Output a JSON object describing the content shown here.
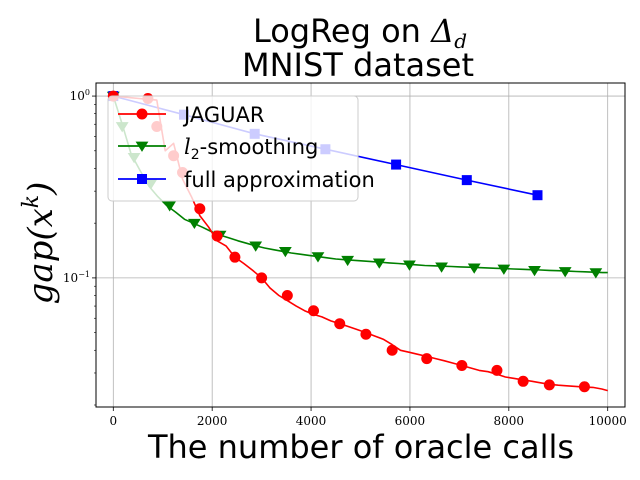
{
  "chart_data": {
    "type": "line",
    "title_line1_text": "LogReg on ",
    "title_line1_math": "Δ",
    "title_line1_sub": "d",
    "title_line2": "MNIST dataset",
    "xlabel": "The number of oracle calls",
    "ylabel": "gap(x",
    "ylabel_sup": "k",
    "ylabel_close": ")",
    "xlim": [
      -350,
      10350
    ],
    "ylim": [
      0.0195,
      1.18
    ],
    "yscale": "log",
    "grid": true,
    "legend_position": "upper-left",
    "x_ticks": [
      0,
      2000,
      4000,
      6000,
      8000,
      10000
    ],
    "x_tick_labels": [
      "0",
      "2000",
      "4000",
      "6000",
      "8000",
      "10000"
    ],
    "y_ticks": [
      0.1,
      1
    ],
    "y_tick_bases": [
      "10",
      "10"
    ],
    "y_tick_exps": [
      "−1",
      "0"
    ],
    "series": [
      {
        "name": "JAGUAR",
        "legend_text": "JAGUAR",
        "color": "#ff0000",
        "marker": "circle",
        "x": [
          0,
          180,
          350,
          520,
          700,
          880,
          1050,
          1220,
          1400,
          1580,
          1750,
          1930,
          2100,
          2280,
          2460,
          2640,
          2820,
          3000,
          3170,
          3350,
          3520,
          3700,
          3870,
          4050,
          4220,
          4400,
          4580,
          4760,
          4930,
          5110,
          5280,
          5460,
          5640,
          5810,
          5990,
          6160,
          6340,
          6520,
          6700,
          6870,
          7050,
          7220,
          7400,
          7580,
          7760,
          7930,
          8110,
          8290,
          8470,
          8640,
          8820,
          9000,
          9170,
          9350,
          9530,
          9700,
          9880,
          10000
        ],
        "y": [
          1.0,
          0.99,
          0.98,
          0.97,
          0.96,
          0.95,
          0.5,
          0.55,
          0.35,
          0.28,
          0.22,
          0.19,
          0.16,
          0.15,
          0.13,
          0.12,
          0.11,
          0.1,
          0.088,
          0.08,
          0.075,
          0.07,
          0.066,
          0.063,
          0.061,
          0.058,
          0.056,
          0.054,
          0.052,
          0.05,
          0.048,
          0.046,
          0.043,
          0.04,
          0.039,
          0.038,
          0.037,
          0.036,
          0.035,
          0.034,
          0.033,
          0.032,
          0.031,
          0.0305,
          0.0295,
          0.0285,
          0.028,
          0.0275,
          0.027,
          0.0265,
          0.026,
          0.0257,
          0.0255,
          0.0253,
          0.0251,
          0.025,
          0.0245,
          0.024
        ],
        "marker_x": [
          0,
          700,
          880,
          1220,
          1400,
          1750,
          2100,
          2460,
          3000,
          3520,
          4050,
          4580,
          5110,
          5640,
          6340,
          7050,
          7760,
          8290,
          8820,
          9530
        ],
        "marker_y": [
          1.0,
          0.97,
          0.68,
          0.47,
          0.38,
          0.24,
          0.17,
          0.13,
          0.1,
          0.08,
          0.066,
          0.056,
          0.049,
          0.04,
          0.036,
          0.033,
          0.031,
          0.027,
          0.0258,
          0.0252
        ]
      },
      {
        "name": "l2-smoothing",
        "legend_math": "l",
        "legend_sub": "2",
        "legend_text": "-smoothing",
        "color": "#008000",
        "marker": "triangle-down",
        "x": [
          0,
          180,
          360,
          540,
          720,
          900,
          1080,
          1260,
          1440,
          1620,
          1800,
          1980,
          2160,
          2340,
          2520,
          2700,
          2880,
          3060,
          3240,
          3420,
          3600,
          3780,
          3960,
          4140,
          4320,
          4500,
          4680,
          4860,
          5040,
          5220,
          5400,
          5580,
          5760,
          5940,
          6120,
          6300,
          6480,
          6660,
          6840,
          7020,
          7200,
          7380,
          7560,
          7740,
          7920,
          8100,
          8280,
          8460,
          8640,
          8820,
          9000,
          9180,
          9360,
          9540,
          9720,
          9900,
          10000
        ],
        "y": [
          1.0,
          0.7,
          0.48,
          0.39,
          0.32,
          0.28,
          0.25,
          0.23,
          0.21,
          0.2,
          0.19,
          0.18,
          0.172,
          0.166,
          0.16,
          0.155,
          0.15,
          0.146,
          0.143,
          0.14,
          0.137,
          0.135,
          0.133,
          0.131,
          0.129,
          0.127,
          0.126,
          0.125,
          0.124,
          0.123,
          0.122,
          0.121,
          0.12,
          0.119,
          0.118,
          0.117,
          0.1165,
          0.116,
          0.1155,
          0.115,
          0.1145,
          0.114,
          0.1135,
          0.113,
          0.1125,
          0.112,
          0.1115,
          0.111,
          0.1105,
          0.11,
          0.1095,
          0.109,
          0.1085,
          0.108,
          0.1075,
          0.107,
          0.107
        ],
        "marker_x": [
          0,
          180,
          420,
          760,
          1140,
          1640,
          2160,
          2880,
          3480,
          4140,
          4740,
          5380,
          5990,
          6640,
          7300,
          7900,
          8520,
          9140,
          9760
        ],
        "marker_y": [
          1.0,
          0.68,
          0.46,
          0.33,
          0.25,
          0.2,
          0.172,
          0.15,
          0.14,
          0.131,
          0.125,
          0.121,
          0.118,
          0.115,
          0.1135,
          0.112,
          0.11,
          0.1085,
          0.107
        ]
      },
      {
        "name": "full approximation",
        "legend_text": "full approximation",
        "color": "#0000ff",
        "marker": "square",
        "x": [
          0,
          1430,
          2860,
          4290,
          5720,
          7150,
          8580
        ],
        "y": [
          1.0,
          0.79,
          0.62,
          0.51,
          0.42,
          0.345,
          0.285
        ],
        "marker_x": [
          0,
          1430,
          2860,
          4290,
          5720,
          7150,
          8580
        ],
        "marker_y": [
          1.0,
          0.79,
          0.62,
          0.51,
          0.42,
          0.345,
          0.285
        ]
      }
    ]
  }
}
